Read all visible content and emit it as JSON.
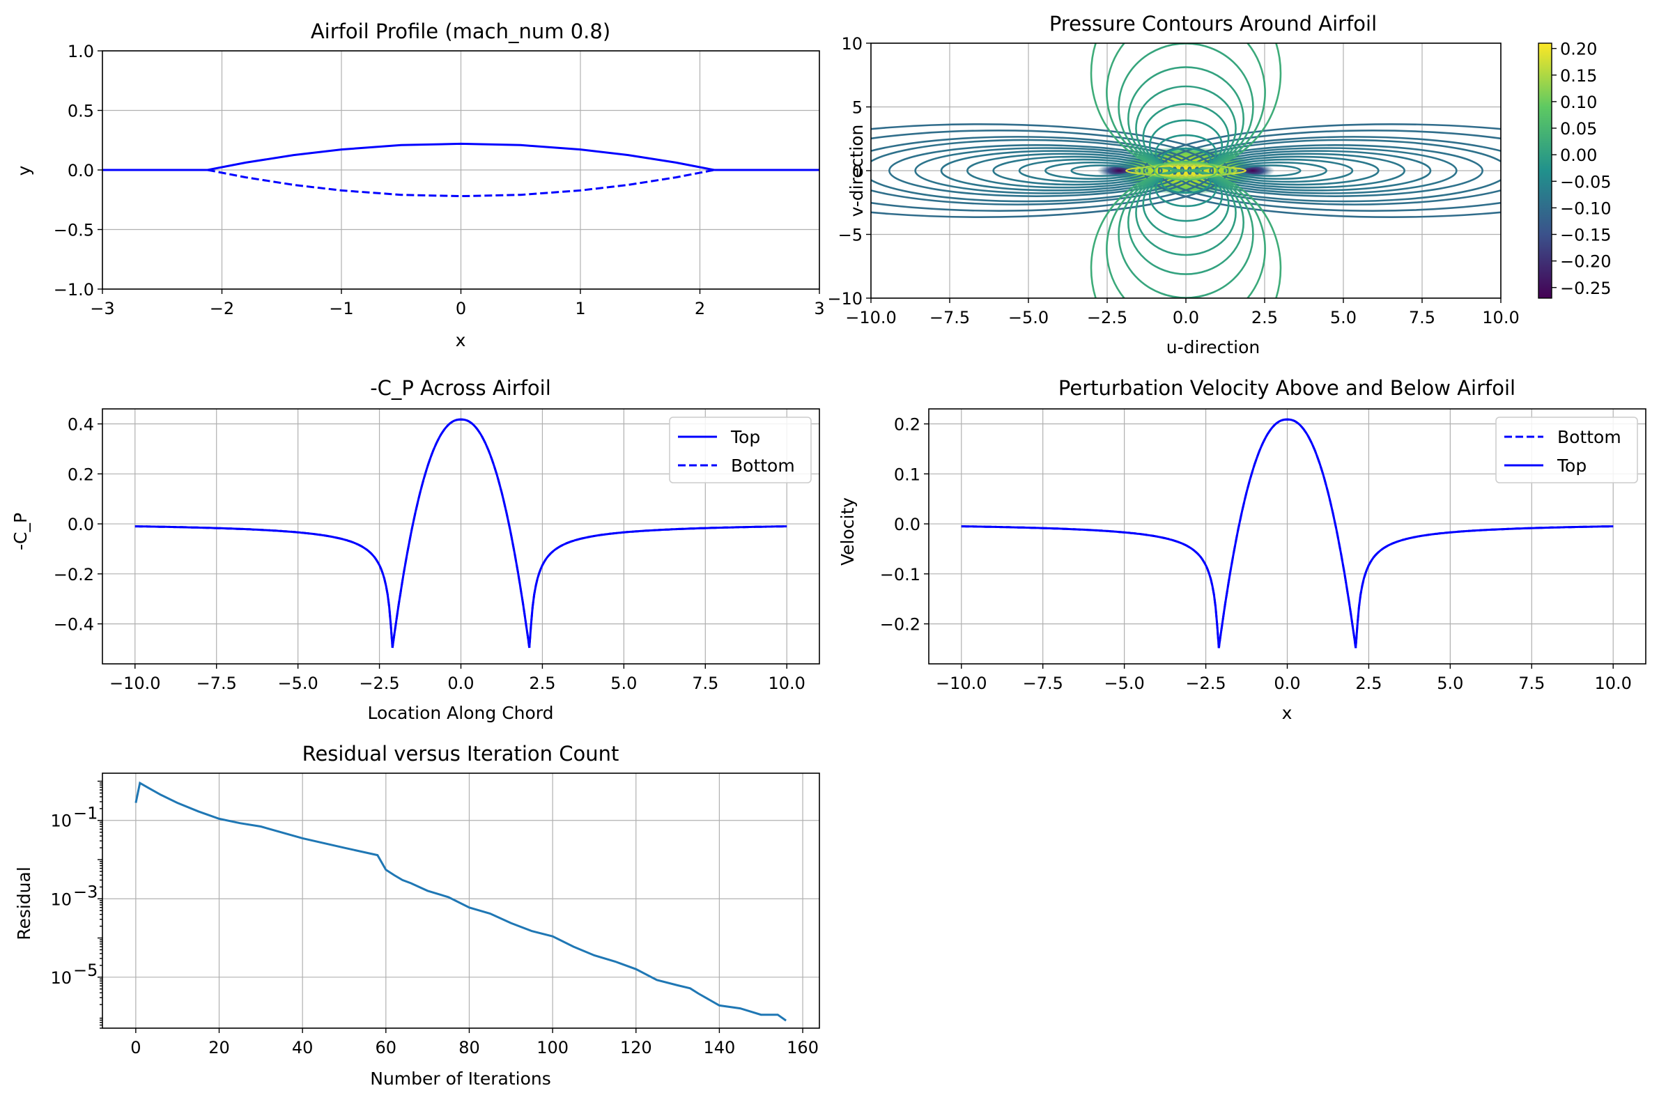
{
  "chart_data": [
    {
      "id": "p1",
      "type": "line",
      "title": "Airfoil Profile (mach_num 0.8)",
      "xlabel": "x",
      "ylabel": "y",
      "xlim": [
        -3,
        3
      ],
      "ylim": [
        -1,
        1
      ],
      "xticks": [
        -3,
        -2,
        -1,
        0,
        1,
        2,
        3
      ],
      "yticks": [
        -1.0,
        -0.5,
        0.0,
        0.5,
        1.0
      ],
      "xtick_labels": [
        "−3",
        "−2",
        "−1",
        "0",
        "1",
        "2",
        "3"
      ],
      "ytick_labels": [
        "−1.0",
        "−0.5",
        "0.0",
        "0.5",
        "1.0"
      ],
      "grid": true,
      "series": [
        {
          "style": "solid",
          "color": "#0000ff",
          "x": [
            -3,
            -2.12,
            -1.8,
            -1.4,
            -1.0,
            -0.5,
            0,
            0.5,
            1.0,
            1.4,
            1.8,
            2.12,
            3
          ],
          "y": [
            0,
            0,
            0.062,
            0.125,
            0.172,
            0.209,
            0.22,
            0.209,
            0.172,
            0.125,
            0.062,
            0,
            0
          ]
        },
        {
          "style": "dashed",
          "color": "#0000ff",
          "x": [
            -2.12,
            -1.8,
            -1.4,
            -1.0,
            -0.5,
            0,
            0.5,
            1.0,
            1.4,
            1.8,
            2.12
          ],
          "y": [
            0,
            -0.062,
            -0.125,
            -0.172,
            -0.209,
            -0.22,
            -0.209,
            -0.172,
            -0.125,
            -0.062,
            0
          ]
        }
      ]
    },
    {
      "id": "p2",
      "type": "contour",
      "title": "Pressure Contours Around Airfoil",
      "xlabel": "u-direction",
      "ylabel": "v-direction",
      "xlim": [
        -10,
        10
      ],
      "ylim": [
        -10,
        10
      ],
      "xticks": [
        -10,
        -7.5,
        -5,
        -2.5,
        0,
        2.5,
        5,
        7.5,
        10
      ],
      "yticks": [
        -10,
        -5,
        0,
        5,
        10
      ],
      "xtick_labels": [
        "−10.0",
        "−7.5",
        "−5.0",
        "−2.5",
        "0.0",
        "2.5",
        "5.0",
        "7.5",
        "10.0"
      ],
      "ytick_labels": [
        "−10",
        "−5",
        "0",
        "5",
        "10"
      ],
      "grid": true,
      "colormap": [
        "#440154",
        "#3b528b",
        "#21918c",
        "#5ec962",
        "#fde725"
      ],
      "colorbar_range": [
        -0.27,
        0.21
      ],
      "colorbar_ticks": [
        -0.25,
        -0.2,
        -0.15,
        -0.1,
        -0.05,
        0.0,
        0.05,
        0.1,
        0.15,
        0.2
      ],
      "colorbar_tick_labels": [
        "−0.25",
        "−0.20",
        "−0.15",
        "−0.10",
        "−0.05",
        "0.00",
        "0.05",
        "0.10",
        "0.15",
        "0.20"
      ]
    },
    {
      "id": "p3",
      "type": "line",
      "title": "-C_P Across Airfoil",
      "xlabel": "Location Along Chord",
      "ylabel": "-C_P",
      "xlim": [
        -11,
        11
      ],
      "ylim": [
        -0.56,
        0.46
      ],
      "xticks": [
        -10,
        -7.5,
        -5,
        -2.5,
        0,
        2.5,
        5,
        7.5,
        10
      ],
      "yticks": [
        -0.4,
        -0.2,
        0.0,
        0.2,
        0.4
      ],
      "xtick_labels": [
        "−10.0",
        "−7.5",
        "−5.0",
        "−2.5",
        "0.0",
        "2.5",
        "5.0",
        "7.5",
        "10.0"
      ],
      "ytick_labels": [
        "−0.4",
        "−0.2",
        "0.0",
        "0.2",
        "0.4"
      ],
      "grid": true,
      "legend": "top-right",
      "series": [
        {
          "name": "Top",
          "style": "solid",
          "color": "#0000ff",
          "f": "cp",
          "amp": 0.418,
          "tip": -0.515
        },
        {
          "name": "Bottom",
          "style": "dashed",
          "color": "#0000ff",
          "f": "cp",
          "amp": 0.418,
          "tip": -0.515
        }
      ]
    },
    {
      "id": "p4",
      "type": "line",
      "title": "Perturbation Velocity Above and Below Airfoil",
      "xlabel": "x",
      "ylabel": "Velocity",
      "xlim": [
        -11,
        11
      ],
      "ylim": [
        -0.28,
        0.23
      ],
      "xticks": [
        -10,
        -7.5,
        -5,
        -2.5,
        0,
        2.5,
        5,
        7.5,
        10
      ],
      "yticks": [
        -0.2,
        -0.1,
        0.0,
        0.1,
        0.2
      ],
      "xtick_labels": [
        "−10.0",
        "−7.5",
        "−5.0",
        "−2.5",
        "0.0",
        "2.5",
        "5.0",
        "7.5",
        "10.0"
      ],
      "ytick_labels": [
        "−0.2",
        "−0.1",
        "0.0",
        "0.1",
        "0.2"
      ],
      "grid": true,
      "legend": "top-right",
      "series": [
        {
          "name": "Bottom",
          "style": "dashed",
          "color": "#0000ff",
          "f": "cp",
          "amp": 0.209,
          "tip": -0.258
        },
        {
          "name": "Top",
          "style": "solid",
          "color": "#0000ff",
          "f": "cp",
          "amp": 0.209,
          "tip": -0.258
        }
      ]
    },
    {
      "id": "p5",
      "type": "line",
      "yscale": "log",
      "title": "Residual versus Iteration Count",
      "xlabel": "Number of Iterations",
      "ylabel": "Residual",
      "xlim": [
        -8,
        164
      ],
      "ylim": [
        5e-07,
        1.6
      ],
      "xticks": [
        0,
        20,
        40,
        60,
        80,
        100,
        120,
        140,
        160
      ],
      "yticks": [
        1e-05,
        0.001,
        0.1
      ],
      "xtick_labels": [
        "0",
        "20",
        "40",
        "60",
        "80",
        "100",
        "120",
        "140",
        "160"
      ],
      "ytick_labels": [
        "10",
        "10",
        "10"
      ],
      "ytick_exponents": [
        "−5",
        "−3",
        "−1"
      ],
      "grid": true,
      "series": [
        {
          "color": "#1f77b4",
          "x": [
            0,
            1,
            3,
            6,
            10,
            15,
            20,
            25,
            30,
            40,
            50,
            58,
            60,
            62,
            64,
            66,
            70,
            75,
            80,
            85,
            90,
            95,
            100,
            105,
            110,
            115,
            120,
            125,
            130,
            133,
            135,
            140,
            145,
            150,
            154,
            156
          ],
          "y": [
            0.28,
            0.9,
            0.68,
            0.45,
            0.28,
            0.17,
            0.11,
            0.085,
            0.07,
            0.035,
            0.02,
            0.013,
            0.0055,
            0.004,
            0.003,
            0.0025,
            0.0016,
            0.0011,
            0.0006,
            0.00042,
            0.00024,
            0.00015,
            0.00011,
            6e-05,
            3.6e-05,
            2.5e-05,
            1.6e-05,
            8.5e-06,
            6.2e-06,
            5.2e-06,
            3.8e-06,
            1.9e-06,
            1.6e-06,
            1.1e-06,
            1.1e-06,
            7.8e-07
          ]
        }
      ]
    }
  ]
}
